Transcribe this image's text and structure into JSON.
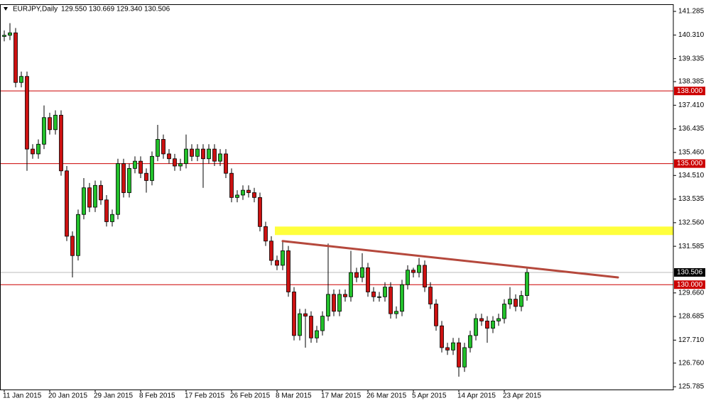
{
  "header": {
    "symbol": "EURJPY,Daily",
    "quote": [
      "129.550",
      "130.669",
      "129.340",
      "130.506"
    ]
  },
  "chart_data": {
    "type": "candlestick",
    "categories": [
      "11 Jan 2015",
      null,
      null,
      null,
      null,
      null,
      null,
      null,
      "20 Jan 2015",
      null,
      null,
      null,
      null,
      null,
      null,
      null,
      "29 Jan 2015",
      null,
      null,
      null,
      null,
      null,
      null,
      null,
      "8 Feb 2015",
      null,
      null,
      null,
      null,
      null,
      null,
      null,
      "17 Feb 2015",
      null,
      null,
      null,
      null,
      null,
      null,
      null,
      "26 Feb 2015",
      null,
      null,
      null,
      null,
      null,
      null,
      null,
      "8 Mar 2015",
      null,
      null,
      null,
      null,
      null,
      null,
      null,
      "17 Mar 2015",
      null,
      null,
      null,
      null,
      null,
      null,
      null,
      "26 Mar 2015",
      null,
      null,
      null,
      null,
      null,
      null,
      null,
      "5 Apr 2015",
      null,
      null,
      null,
      null,
      null,
      null,
      null,
      "14 Apr 2015",
      null,
      null,
      null,
      null,
      null,
      null,
      null,
      "23 Apr 2015",
      null,
      null,
      null,
      null
    ],
    "open": [
      140.25,
      140.3,
      140.4,
      138.35,
      138.6,
      135.6,
      135.4,
      135.8,
      136.9,
      136.4,
      137,
      134.7,
      132,
      131.2,
      132.9,
      134,
      133.2,
      134.1,
      133.5,
      132.6,
      132.9,
      135,
      133.8,
      134.8,
      135.1,
      134.6,
      134.3,
      135.3,
      136,
      135.4,
      135.2,
      134.9,
      135,
      135.6,
      135.3,
      135.6,
      135.2,
      135.6,
      135.1,
      135.4,
      134.6,
      133.6,
      133.7,
      133.9,
      133.8,
      133.6,
      132.4,
      131.8,
      131,
      130.8,
      131.4,
      129.7,
      127.9,
      128.8,
      128.7,
      127.8,
      128.1,
      128.7,
      129.6,
      128.9,
      129.6,
      129.5,
      130.5,
      130.3,
      130.7,
      129.7,
      129.5,
      129.5,
      129.9,
      128.8,
      128.9,
      130,
      130.6,
      130.5,
      130.8,
      129.9,
      129.2,
      128.3,
      127.4,
      127.3,
      127.6,
      126.6,
      127.4,
      127.9,
      128.6,
      128.5,
      128.2,
      128.5,
      128.6,
      129.2,
      129.4,
      129.1,
      129.55
    ],
    "high": [
      140.5,
      140.8,
      140.6,
      138.8,
      138.8,
      135.8,
      136,
      137.4,
      137.1,
      137.2,
      137.2,
      134.9,
      132.2,
      133.1,
      134.4,
      134.2,
      134.3,
      134.3,
      133.7,
      133.1,
      135.2,
      135.2,
      135,
      135.3,
      135.3,
      134.8,
      135.5,
      136.6,
      136.2,
      135.6,
      135.4,
      135.2,
      136.2,
      135.8,
      135.8,
      135.8,
      135.8,
      135.8,
      135.6,
      135.6,
      134.8,
      133.9,
      134.1,
      134.1,
      134,
      133.8,
      132.6,
      132,
      131.2,
      131.8,
      131.6,
      129.9,
      129,
      129,
      128.9,
      128.3,
      128.9,
      131.7,
      129.8,
      129.8,
      129.8,
      131.4,
      130.7,
      131.3,
      130.9,
      129.9,
      129.7,
      130.1,
      130.1,
      129.1,
      130.2,
      130.8,
      130.7,
      131.1,
      131,
      130.1,
      129.4,
      128.5,
      127.6,
      127.8,
      127.8,
      127.6,
      128.1,
      128.8,
      128.8,
      128.7,
      128.7,
      128.8,
      129.4,
      129.9,
      129.6,
      129.75,
      130.669
    ],
    "low": [
      140.05,
      140.1,
      138.15,
      138.15,
      134.7,
      135.2,
      135.2,
      135.6,
      136.2,
      136.2,
      134.5,
      131.8,
      130.3,
      131,
      132.7,
      133,
      133,
      133.3,
      132.4,
      132.4,
      132.7,
      133.6,
      133.6,
      134.6,
      134.4,
      133.8,
      134.1,
      135.1,
      135.2,
      135,
      134.7,
      134.7,
      134.8,
      135.1,
      135.1,
      134,
      135,
      134.9,
      134.9,
      134.4,
      133.4,
      133.4,
      133.5,
      133.6,
      133.4,
      132.2,
      131.6,
      130.8,
      130.6,
      130.6,
      129.5,
      127.7,
      127.7,
      127.4,
      127.6,
      127.6,
      127.9,
      128.5,
      128.7,
      128.7,
      129.3,
      129.3,
      130.1,
      130.1,
      129.5,
      129.3,
      129.3,
      129.3,
      128.6,
      128.6,
      128.7,
      129.8,
      130.3,
      130.3,
      129.7,
      129,
      128.1,
      127.2,
      127.1,
      127.1,
      126.2,
      126.4,
      127.2,
      127.7,
      128.3,
      127.6,
      128,
      128.3,
      128.4,
      129,
      128.9,
      128.9,
      129.34
    ],
    "close": [
      140.3,
      140.4,
      138.35,
      138.6,
      135.6,
      135.4,
      135.8,
      136.9,
      136.4,
      137,
      134.7,
      132,
      131.2,
      132.9,
      134,
      133.2,
      134.1,
      133.5,
      132.6,
      132.9,
      135,
      133.8,
      134.8,
      135.1,
      134.6,
      134.3,
      135.3,
      136,
      135.4,
      135.2,
      134.9,
      135,
      135.6,
      135.3,
      135.6,
      135.2,
      135.6,
      135.1,
      135.4,
      134.6,
      133.6,
      133.7,
      133.9,
      133.8,
      133.6,
      132.4,
      131.8,
      131,
      130.8,
      131.4,
      129.7,
      127.9,
      128.8,
      128.7,
      127.8,
      128.1,
      128.7,
      129.6,
      128.9,
      129.6,
      129.5,
      130.5,
      130.3,
      130.7,
      129.7,
      129.5,
      129.5,
      129.9,
      128.8,
      128.9,
      130,
      130.6,
      130.5,
      130.8,
      129.9,
      129.2,
      128.3,
      127.4,
      127.3,
      127.6,
      126.6,
      127.4,
      127.9,
      128.6,
      128.5,
      128.2,
      128.5,
      128.6,
      129.2,
      129.4,
      129.1,
      129.55,
      130.506
    ],
    "up_color": "#22c02a",
    "down_color": "#cc1111",
    "ylim": [
      125.67,
      141.58
    ],
    "yticks": [
      141.285,
      {
        "value": 140.31,
        "label": "140.310"
      },
      139.335,
      138.385,
      {
        "value": 137.41,
        "label": "137.410"
      },
      136.435,
      {
        "value": 135.46,
        "label": "135.460"
      },
      {
        "value": 134.51,
        "label": "134.510"
      },
      133.535,
      {
        "value": 132.56,
        "label": "132.560"
      },
      131.585,
      {
        "value": 129.66,
        "label": "129.660"
      },
      128.685,
      {
        "value": 127.71,
        "label": "127.710"
      },
      {
        "value": 126.76,
        "label": "126.760"
      },
      125.785
    ],
    "levels": [
      {
        "value": 138,
        "label": "138.000"
      },
      {
        "value": 135,
        "label": "135.000"
      },
      {
        "value": 130,
        "label": "130.000"
      }
    ],
    "level_color": "#cc0000",
    "trendline": {
      "from": [
        49,
        131.8
      ],
      "to": [
        108,
        130.3
      ],
      "color": "#b5483c"
    },
    "zone": {
      "from": 48,
      "range": [
        132.05,
        132.4
      ],
      "color": "#ffff3c"
    }
  }
}
